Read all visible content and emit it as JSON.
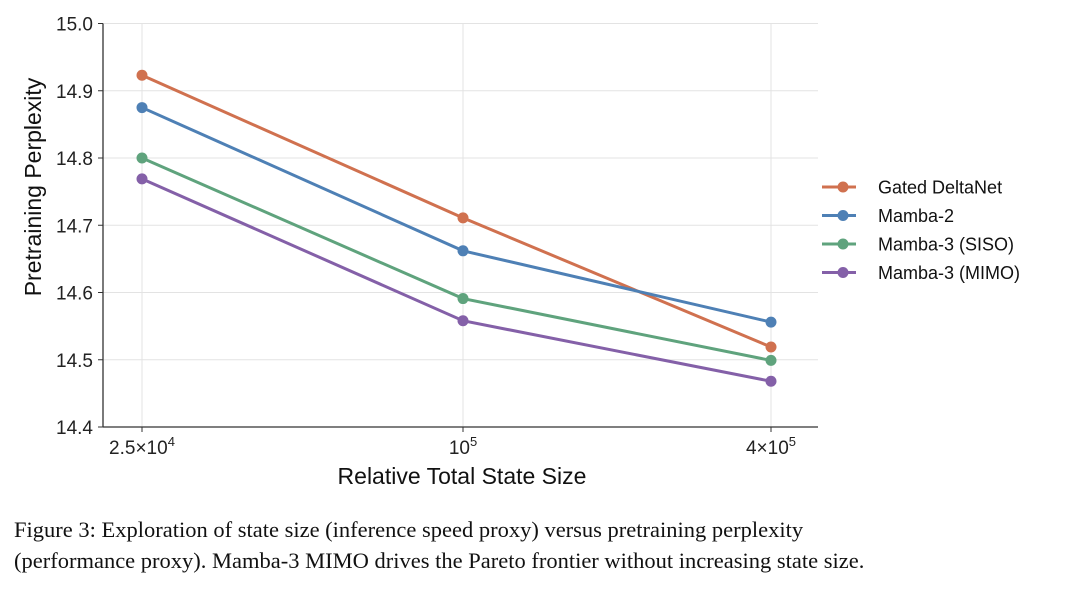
{
  "chart_data": {
    "type": "line",
    "xlabel": "Relative Total State Size",
    "ylabel": "Pretraining Perplexity",
    "x": [
      25000,
      100000,
      400000
    ],
    "x_tick_labels": [
      {
        "base": "2.5×10",
        "exp": "4"
      },
      {
        "base": "10",
        "exp": "5"
      },
      {
        "base": "4×10",
        "exp": "5"
      }
    ],
    "x_scale": "log",
    "ylim": [
      14.4,
      15.0
    ],
    "y_ticks": [
      "14.4",
      "14.5",
      "14.6",
      "14.7",
      "14.8",
      "14.9",
      "15.0"
    ],
    "grid": true,
    "legend_position": "right",
    "series": [
      {
        "name": "Gated DeltaNet",
        "color": "#d0714f",
        "values": [
          14.923,
          14.711,
          14.519
        ]
      },
      {
        "name": "Mamba-2",
        "color": "#4e80b5",
        "values": [
          14.875,
          14.662,
          14.556
        ]
      },
      {
        "name": "Mamba-3 (SISO)",
        "color": "#5fa37d",
        "values": [
          14.8,
          14.591,
          14.499
        ]
      },
      {
        "name": "Mamba-3 (MIMO)",
        "color": "#8460a8",
        "values": [
          14.769,
          14.558,
          14.468
        ]
      }
    ]
  },
  "caption": {
    "line1": "Figure 3: Exploration of state size (inference speed proxy) versus pretraining perplexity",
    "line2": "(performance proxy). Mamba-3 MIMO drives the Pareto frontier without increasing state size."
  }
}
